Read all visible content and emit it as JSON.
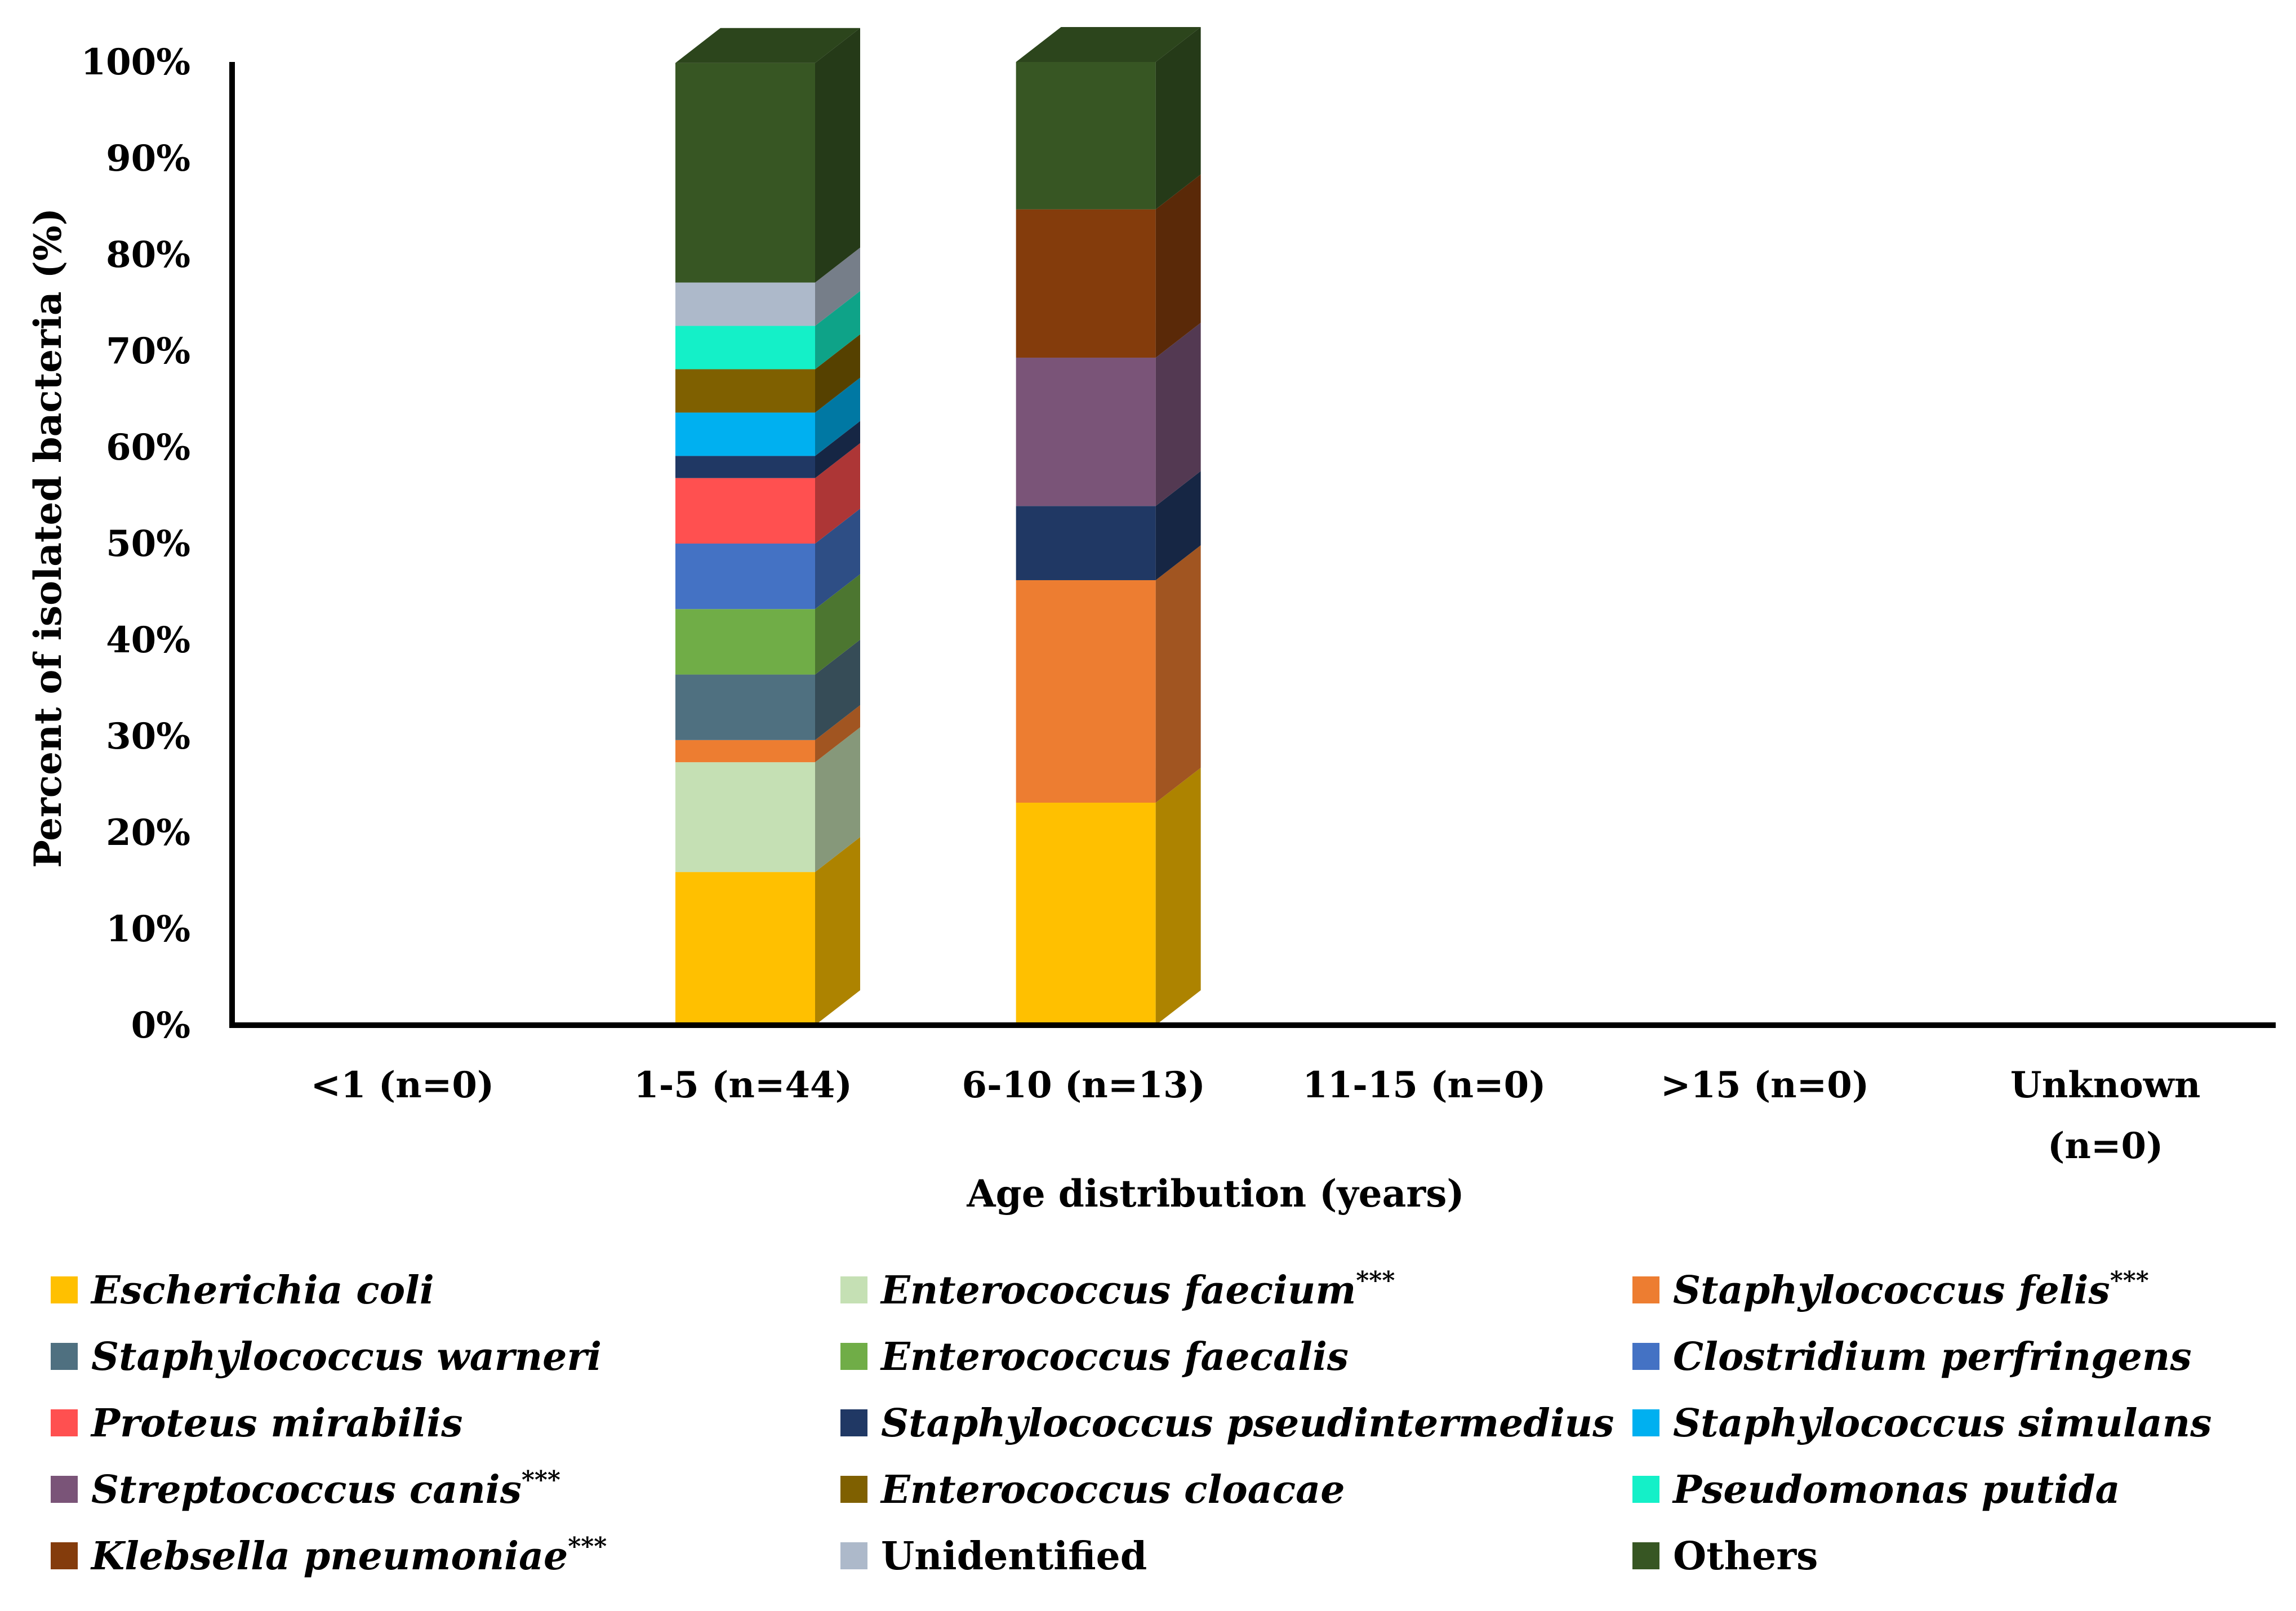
{
  "chart_data": {
    "type": "bar",
    "stacked": true,
    "three_d": true,
    "title": "",
    "xlabel": "Age distribution (years)",
    "ylabel": "Percent of isolated bacteria (%)",
    "ylim": [
      0,
      100
    ],
    "yticks": [
      "0%",
      "10%",
      "20%",
      "30%",
      "40%",
      "50%",
      "60%",
      "70%",
      "80%",
      "90%",
      "100%"
    ],
    "categories": [
      {
        "line1": "<1 (n=0)",
        "line2": ""
      },
      {
        "line1": "1-5 (n=44)",
        "line2": ""
      },
      {
        "line1": "6-10 (n=13)",
        "line2": ""
      },
      {
        "line1": "11-15 (n=0)",
        "line2": ""
      },
      {
        "line1": ">15 (n=0)",
        "line2": ""
      },
      {
        "line1": "Unknown",
        "line2": "(n=0)"
      }
    ],
    "series": [
      {
        "name": "Escherichia coli",
        "suffix": "",
        "italic": true,
        "color": "#FFC000",
        "values": [
          0,
          15.9,
          23.1,
          0,
          0,
          0
        ]
      },
      {
        "name": "Enterococcus faecium",
        "suffix": "***",
        "italic": true,
        "color": "#C5E0B4",
        "values": [
          0,
          11.4,
          0,
          0,
          0,
          0
        ]
      },
      {
        "name": "Staphylococcus felis",
        "suffix": "***",
        "italic": true,
        "color": "#ED7D31",
        "values": [
          0,
          2.3,
          23.1,
          0,
          0,
          0
        ]
      },
      {
        "name": "Staphylococcus warneri",
        "suffix": "",
        "italic": true,
        "color": "#4F7080",
        "values": [
          0,
          6.8,
          0,
          0,
          0,
          0
        ]
      },
      {
        "name": "Enterococcus faecalis",
        "suffix": "",
        "italic": true,
        "color": "#70AD47",
        "values": [
          0,
          6.8,
          0,
          0,
          0,
          0
        ]
      },
      {
        "name": "Clostridium perfringens",
        "suffix": "",
        "italic": true,
        "color": "#4472C4",
        "values": [
          0,
          6.8,
          0,
          0,
          0,
          0
        ]
      },
      {
        "name": "Proteus mirabilis",
        "suffix": "",
        "italic": true,
        "color": "#FF5050",
        "values": [
          0,
          6.8,
          0,
          0,
          0,
          0
        ]
      },
      {
        "name": "Staphylococcus pseudintermedius",
        "suffix": "",
        "italic": true,
        "color": "#203864",
        "values": [
          0,
          2.3,
          7.7,
          0,
          0,
          0
        ]
      },
      {
        "name": "Staphylococcus simulans",
        "suffix": "",
        "italic": true,
        "color": "#00B0F0",
        "values": [
          0,
          4.5,
          0,
          0,
          0,
          0
        ]
      },
      {
        "name": "Streptococcus canis",
        "suffix": "***",
        "italic": true,
        "color": "#7A5478",
        "values": [
          0,
          0,
          15.4,
          0,
          0,
          0
        ]
      },
      {
        "name": "Enterococcus cloacae",
        "suffix": "",
        "italic": true,
        "color": "#7F6000",
        "values": [
          0,
          4.5,
          0,
          0,
          0,
          0
        ]
      },
      {
        "name": "Pseudomonas putida",
        "suffix": "",
        "italic": true,
        "color": "#14F0C8",
        "values": [
          0,
          4.5,
          0,
          0,
          0,
          0
        ]
      },
      {
        "name": "Klebsella pneumoniae",
        "suffix": "***",
        "italic": true,
        "color": "#843C0C",
        "values": [
          0,
          0,
          15.4,
          0,
          0,
          0
        ]
      },
      {
        "name": "Unidentified",
        "suffix": "",
        "italic": false,
        "color": "#ADB9CA",
        "values": [
          0,
          4.5,
          0,
          0,
          0,
          0
        ]
      },
      {
        "name": "Others",
        "suffix": "",
        "italic": false,
        "color": "#375623",
        "values": [
          0,
          22.8,
          15.3,
          0,
          0,
          0
        ]
      }
    ]
  }
}
